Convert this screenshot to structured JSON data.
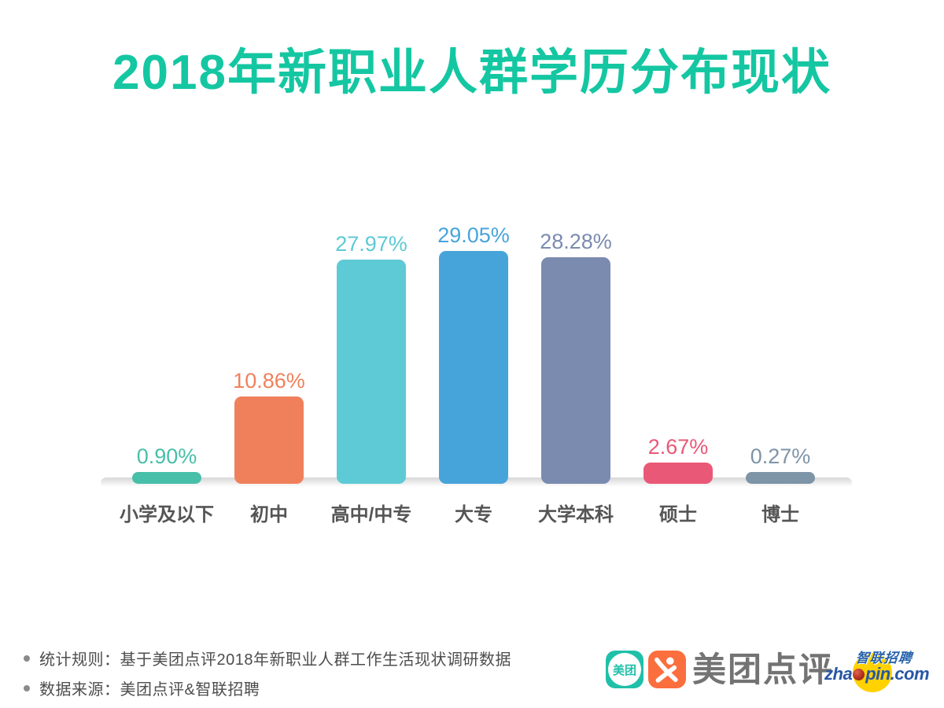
{
  "title": "2018年新职业人群学历分布现状",
  "chart_data": {
    "type": "bar",
    "title": "2018年新职业人群学历分布现状",
    "categories": [
      "小学及以下",
      "初中",
      "高中/中专",
      "大专",
      "大学本科",
      "硕士",
      "博士"
    ],
    "values": [
      0.9,
      10.86,
      27.97,
      29.05,
      28.28,
      2.67,
      0.27
    ],
    "value_labels": [
      "0.90%",
      "10.86%",
      "27.97%",
      "29.05%",
      "28.28%",
      "2.67%",
      "0.27%"
    ],
    "bar_colors": [
      "#47bfa9",
      "#f0805b",
      "#5ecad5",
      "#47a4da",
      "#7b8bb0",
      "#ea5877",
      "#7e94a7"
    ],
    "xlabel": "",
    "ylabel": "",
    "ylim": [
      0,
      32
    ],
    "grid": false,
    "legend": false
  },
  "footer": {
    "notes": [
      "统计规则：基于美团点评2018年新职业人群工作生活现状调研数据",
      "数据来源：美团点评&智联招聘"
    ]
  },
  "logos": {
    "meituan_icon_label": "美团",
    "brand_name": "美团点评",
    "zhaopin_cn": "智联招聘",
    "zhaopin_en_prefix": "zha",
    "zhaopin_en_suffix": "pin.com"
  },
  "colors": {
    "title": "#14c7a2",
    "category_label": "#555555",
    "footer_text": "#4d4d4d",
    "baseline_shadow": "#d7d7d7",
    "meituan_teal": "#1fc0a9",
    "dianping_orange": "#fb6e3d",
    "brand_gray": "#737373",
    "zhaopin_blue": "#2864ae",
    "zhaopin_yellow": "#ffd200",
    "zhaopin_red": "#8f1d10"
  }
}
